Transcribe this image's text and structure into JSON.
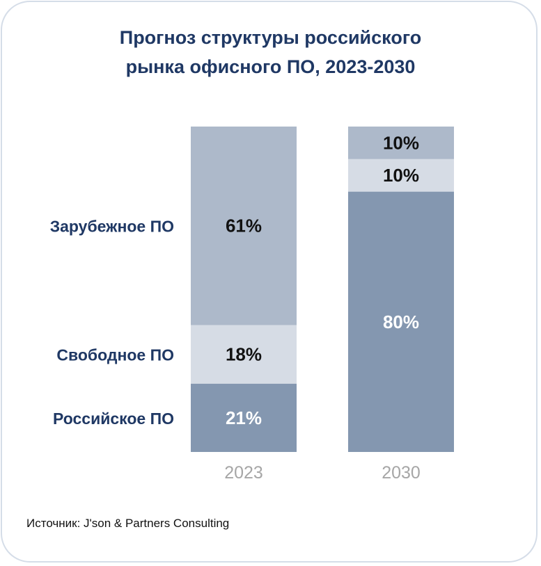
{
  "title_line1": "Прогноз структуры российского",
  "title_line2": "рынка офисного ПО, 2023-2030",
  "source": "Источник: J'son & Partners Consulting",
  "colors": {
    "title": "#1f3864",
    "category_label": "#1f3864",
    "axis_label": "#a6a6a6",
    "border": "#d5dde8"
  },
  "chart_data": {
    "type": "bar",
    "stacked": true,
    "normalized": true,
    "title": "Прогноз структуры российского рынка офисного ПО, 2023-2030",
    "categories": [
      "2023",
      "2030"
    ],
    "ylim": [
      0,
      100
    ],
    "grid": false,
    "legend": "left",
    "series": [
      {
        "name": "Российское ПО",
        "values": [
          21,
          80
        ],
        "labels": [
          "21%",
          "80%"
        ],
        "color": "#8497b0",
        "label_color": "#ffffff"
      },
      {
        "name": "Свободное ПО",
        "values": [
          18,
          10
        ],
        "labels": [
          "18%",
          "10%"
        ],
        "color": "#d6dce5",
        "label_color": "#111111"
      },
      {
        "name": "Зарубежное ПО",
        "values": [
          61,
          10
        ],
        "labels": [
          "61%",
          "10%"
        ],
        "color": "#adb9ca",
        "label_color": "#111111"
      }
    ]
  }
}
